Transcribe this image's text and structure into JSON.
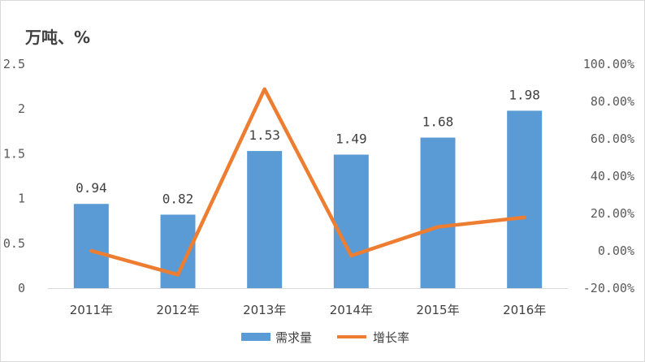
{
  "chart_data": {
    "type": "bar",
    "title": "",
    "unit_label": "万吨、%",
    "categories": [
      "2011年",
      "2012年",
      "2013年",
      "2014年",
      "2015年",
      "2016年"
    ],
    "series": [
      {
        "name": "需求量",
        "type": "bar",
        "axis": "left",
        "values": [
          0.94,
          0.82,
          1.53,
          1.49,
          1.68,
          1.98
        ],
        "data_labels": [
          "0.94",
          "0.82",
          "1.53",
          "1.49",
          "1.68",
          "1.98"
        ],
        "color": "#5b9bd5"
      },
      {
        "name": "增长率",
        "type": "line",
        "axis": "right",
        "values": [
          0.0,
          -12.8,
          86.6,
          -2.6,
          12.8,
          17.9
        ],
        "color": "#ed7d31"
      }
    ],
    "y_left": {
      "ylim": [
        0,
        2.5
      ],
      "ticks": [
        "0",
        "0.5",
        "1",
        "1.5",
        "2",
        "2.5"
      ]
    },
    "y_right": {
      "ylim": [
        -20,
        100
      ],
      "ticks": [
        "-20.00%",
        "0.00%",
        "20.00%",
        "40.00%",
        "60.00%",
        "80.00%",
        "100.00%"
      ]
    },
    "grid": false,
    "legend_position": "bottom"
  }
}
